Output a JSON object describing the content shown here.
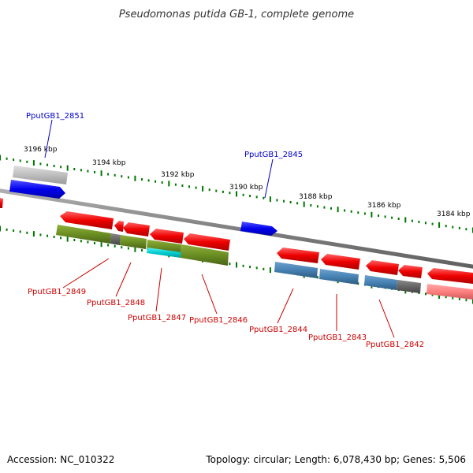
{
  "title": "Pseudomonas putida GB-1, complete genome",
  "footer": {
    "accession": "Accession: NC_010322",
    "summary": "Topology: circular; Length: 6,078,430 bp; Genes: 5,506"
  },
  "colors": {
    "forward_gene": "#ff0000",
    "reverse_gene": "#ff0000",
    "cds_green": "#6b8e23",
    "cds_blue": "#4682b4",
    "cds_gray": "#666666",
    "cds_cyan": "#00ced1",
    "cds_pink": "#ff7f7f",
    "highlight_blue": "#0000ee",
    "ruler": "#007700",
    "backbone": "#808080",
    "label_red": "#cc0000",
    "label_blue": "#0000cc"
  },
  "scale_labels": [
    "3196 kbp",
    "3194 kbp",
    "3192 kbp",
    "3190 kbp",
    "3188 kbp",
    "3186 kbp",
    "3184 kbp"
  ],
  "locus_labels": [
    {
      "text": "PputGB1_2851",
      "color": "blue"
    },
    {
      "text": "PputGB1_2845",
      "color": "blue"
    },
    {
      "text": "PputGB1_2849",
      "color": "red"
    },
    {
      "text": "PputGB1_2848",
      "color": "red"
    },
    {
      "text": "PputGB1_2847",
      "color": "red"
    },
    {
      "text": "PputGB1_2846",
      "color": "red"
    },
    {
      "text": "PputGB1_2844",
      "color": "red"
    },
    {
      "text": "PputGB1_2843",
      "color": "red"
    },
    {
      "text": "PputGB1_2842",
      "color": "red"
    }
  ]
}
